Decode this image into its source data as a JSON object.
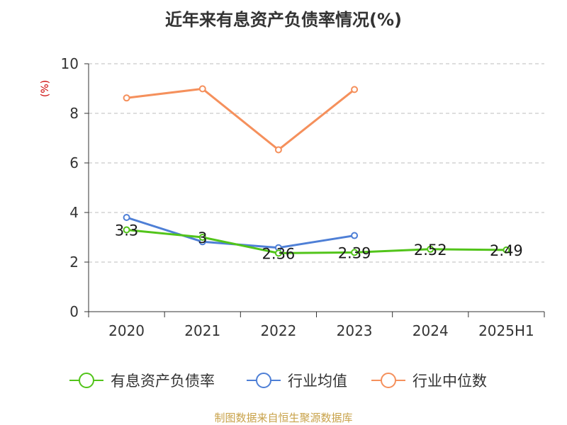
{
  "title": "近年来有息资产负债率情况(%)",
  "source": "制图数据来自恒生聚源数据库",
  "chart_data": {
    "type": "line",
    "title": "近年来有息资产负债率情况(%)",
    "categories": [
      "2020",
      "2021",
      "2022",
      "2023",
      "2024",
      "2025H1"
    ],
    "ylabel": "(%)",
    "ylim": [
      0,
      10
    ],
    "yticks": [
      0,
      2,
      4,
      6,
      8,
      10
    ],
    "grid": true,
    "legend_position": "bottom",
    "series": [
      {
        "name": "有息资产负债率",
        "color": "#52c41a",
        "values": [
          3.3,
          3,
          2.36,
          2.39,
          2.52,
          2.49
        ],
        "labels": [
          "3.3",
          "3",
          "2.36",
          "2.39",
          "2.52",
          "2.49"
        ]
      },
      {
        "name": "行业均值",
        "color": "#4e7fd6",
        "values": [
          3.8,
          2.82,
          2.58,
          3.07,
          null,
          null
        ]
      },
      {
        "name": "行业中位数",
        "color": "#f5905c",
        "values": [
          8.62,
          8.99,
          6.53,
          8.96,
          null,
          null
        ]
      }
    ]
  }
}
